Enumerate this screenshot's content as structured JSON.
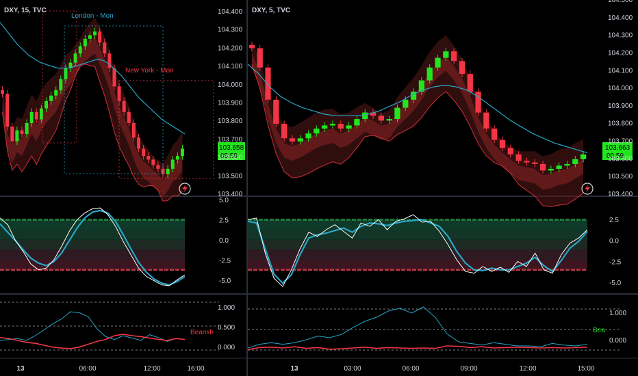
{
  "colors": {
    "background": "#000000",
    "up": "#22e51e",
    "down": "#f23645",
    "ma": "#26a6c8",
    "grid_divider": "#2a2e39",
    "price_tag": "#22e51e"
  },
  "left_panel": {
    "symbol": "DXY, 15, TVC",
    "price_axis": [
      "104.400",
      "104.300",
      "104.200",
      "104.100",
      "104.000",
      "103.900",
      "103.800",
      "103.700",
      "103.600",
      "103.500",
      "103.400"
    ],
    "last_price": "103.658",
    "countdown": "05:59",
    "sessions": [
      {
        "label": "London - Mon"
      },
      {
        "label": "New York - Mon"
      }
    ],
    "time_axis": [
      "13",
      "06:00",
      "12:00",
      "16:00"
    ],
    "osc_axis": [
      "5.0",
      "2.5",
      "0.0",
      "-2.5",
      "-5.0"
    ],
    "lower_axis": [
      "1.000",
      "0.500",
      "0.000"
    ],
    "lower_tag": "Bearish",
    "icon": "lightning-icon"
  },
  "right_panel": {
    "symbol": "DXY, 5, TVC",
    "price_axis": [
      "104.500",
      "104.400",
      "104.300",
      "104.200",
      "104.100",
      "104.000",
      "103.900",
      "103.800",
      "103.700",
      "103.600",
      "103.500",
      "103.400"
    ],
    "last_price": "103.663",
    "countdown": "00:59",
    "time_axis": [
      "13",
      "03:00",
      "06:00",
      "09:00",
      "12:00",
      "15:00"
    ],
    "osc_axis": [
      "2.5",
      "0.0",
      "-2.5",
      "-5.0"
    ],
    "lower_axis": [
      "1.000",
      "0.000"
    ],
    "lower_tag": "Bea",
    "icon": "lightning-icon"
  },
  "chart_data": [
    {
      "type": "candlestick",
      "title": "DXY, 15, TVC",
      "ylim": [
        103.4,
        104.42
      ],
      "close": [
        103.96,
        103.78,
        103.7,
        103.76,
        103.74,
        103.8,
        103.86,
        103.82,
        103.88,
        103.92,
        103.95,
        103.98,
        104.04,
        104.1,
        104.13,
        104.18,
        104.22,
        104.26,
        104.28,
        104.3,
        104.24,
        104.18,
        104.1,
        104.0,
        103.92,
        103.86,
        103.8,
        103.72,
        103.66,
        103.62,
        103.6,
        103.57,
        103.55,
        103.52,
        103.55,
        103.6,
        103.62,
        103.66
      ],
      "ma": [
        104.35,
        104.31,
        104.27,
        104.23,
        104.2,
        104.17,
        104.15,
        104.13,
        104.12,
        104.11,
        104.1,
        104.1,
        104.1,
        104.11,
        104.12,
        104.13,
        104.14,
        104.15,
        104.14,
        104.12,
        104.09,
        104.06,
        104.02,
        103.98,
        103.94,
        103.91,
        103.88,
        103.85,
        103.82,
        103.8,
        103.78,
        103.76,
        103.74
      ]
    },
    {
      "type": "candlestick",
      "title": "DXY, 5, TVC",
      "ylim": [
        103.4,
        104.56
      ],
      "close": [
        104.32,
        104.2,
        104.0,
        103.85,
        103.76,
        103.74,
        103.76,
        103.79,
        103.82,
        103.84,
        103.85,
        103.82,
        103.84,
        103.88,
        103.92,
        103.9,
        103.87,
        103.88,
        103.95,
        104.0,
        104.05,
        104.12,
        104.2,
        104.26,
        104.3,
        104.24,
        104.16,
        104.05,
        103.92,
        103.82,
        103.75,
        103.7,
        103.66,
        103.62,
        103.61,
        103.6,
        103.56,
        103.57,
        103.59,
        103.6,
        103.63,
        103.66
      ],
      "ma": [
        104.22,
        104.16,
        104.08,
        104.02,
        103.98,
        103.95,
        103.93,
        103.91,
        103.9,
        103.9,
        103.9,
        103.91,
        103.93,
        103.96,
        103.99,
        104.03,
        104.06,
        104.08,
        104.09,
        104.08,
        104.06,
        104.02,
        103.97,
        103.92,
        103.87,
        103.83,
        103.79,
        103.76,
        103.73,
        103.71,
        103.69,
        103.67
      ]
    },
    {
      "type": "line",
      "title": "Oscillator (15)",
      "ylim": [
        -5.4,
        5.4
      ],
      "series": [
        {
          "values": [
            2.5,
            1.5,
            0.5,
            -0.6,
            -1.6,
            -2.2,
            -2.5,
            -2.0,
            -1.0,
            0.5,
            2.0,
            3.2,
            3.9,
            4.1,
            3.8,
            2.8,
            1.2,
            -0.5,
            -2.1,
            -3.3,
            -4.1,
            -4.6,
            -4.8,
            -4.4,
            -3.8
          ]
        },
        {
          "values": [
            3.2,
            2.4,
            0.5,
            -0.8,
            -2.3,
            -3.0,
            -2.8,
            -1.8,
            -0.2,
            1.6,
            3.0,
            3.8,
            4.3,
            4.4,
            3.6,
            2.2,
            0.4,
            -1.2,
            -2.8,
            -3.8,
            -4.3,
            -4.8,
            -4.9,
            -4.2,
            -3.6
          ]
        }
      ]
    },
    {
      "type": "line",
      "title": "Oscillator (5)",
      "ylim": [
        -5.4,
        5.4
      ],
      "series": [
        {
          "values": [
            2.8,
            2.6,
            -0.5,
            -3.5,
            -4.6,
            -3.6,
            -1.2,
            0.8,
            1.2,
            1.4,
            1.7,
            2.0,
            1.5,
            2.2,
            2.6,
            2.5,
            2.3,
            2.6,
            2.8,
            2.9,
            3.0,
            2.6,
            2.2,
            1.0,
            -0.8,
            -2.2,
            -3.0,
            -3.1,
            -2.8,
            -3.0,
            -3.0,
            -2.6,
            -2.2,
            -1.5,
            -2.5,
            -3.2,
            -1.9,
            -0.4,
            0.4,
            1.6
          ]
        },
        {
          "values": [
            3.0,
            3.2,
            -1.0,
            -4.0,
            -5.0,
            -3.0,
            -0.5,
            1.5,
            1.0,
            1.8,
            2.4,
            1.6,
            0.8,
            2.6,
            2.2,
            3.0,
            1.8,
            2.8,
            3.1,
            3.6,
            2.7,
            2.8,
            1.6,
            0.0,
            -1.8,
            -3.2,
            -3.4,
            -2.6,
            -3.2,
            -2.7,
            -3.3,
            -2.0,
            -2.6,
            -1.0,
            -3.0,
            -3.4,
            -1.2,
            0.2,
            0.8,
            1.8
          ]
        }
      ]
    },
    {
      "type": "line",
      "title": "Lower (15)",
      "ylim": [
        0.0,
        1.0
      ],
      "series": [
        {
          "values": [
            0.2,
            0.22,
            0.24,
            0.2,
            0.3,
            0.42,
            0.55,
            0.65,
            0.8,
            0.78,
            0.7,
            0.45,
            0.28,
            0.22,
            0.3,
            0.25,
            0.2,
            0.32,
            0.26,
            0.18,
            0.24,
            0.22
          ]
        },
        {
          "values": [
            0.26,
            0.24,
            0.2,
            0.16,
            0.14,
            0.1,
            0.06,
            0.04,
            0.03,
            0.06,
            0.12,
            0.18,
            0.22,
            0.3,
            0.33,
            0.3,
            0.28,
            0.25,
            0.22,
            0.2,
            0.24,
            0.22
          ]
        }
      ]
    },
    {
      "type": "line",
      "title": "Lower (5)",
      "ylim": [
        0.0,
        1.2
      ],
      "series": [
        {
          "values": [
            0.05,
            0.14,
            0.18,
            0.14,
            0.18,
            0.25,
            0.34,
            0.3,
            0.38,
            0.55,
            0.7,
            0.8,
            0.95,
            1.02,
            0.9,
            1.05,
            0.8,
            0.4,
            0.2,
            0.16,
            0.12,
            0.18,
            0.14,
            0.1,
            0.1,
            0.08,
            0.16,
            0.12,
            0.1,
            0.14
          ]
        },
        {
          "values": [
            0.01,
            0.06,
            0.07,
            0.05,
            0.08,
            0.04,
            0.06,
            0.02,
            0.03,
            0.05,
            0.07,
            0.04,
            0.06,
            0.05,
            0.04,
            0.05,
            0.04,
            0.1,
            0.09,
            0.06,
            0.08,
            0.05,
            0.06,
            0.07,
            0.06,
            0.05,
            0.06,
            0.05,
            0.06,
            0.07
          ]
        }
      ]
    }
  ]
}
